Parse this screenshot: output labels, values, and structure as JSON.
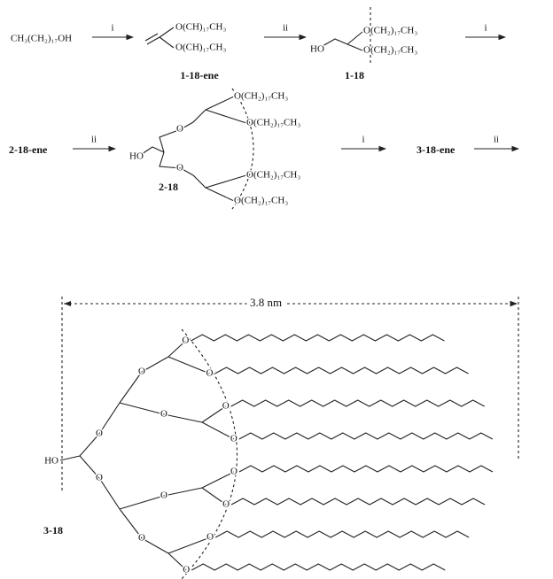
{
  "start": "CH₃(CH₂)₁₇OH",
  "reagents": [
    "i",
    "ii",
    "i",
    "ii",
    "i",
    "ii"
  ],
  "compounds": [
    {
      "label": "1-18-ene",
      "atoms": [
        "O(CH)₁₇CH₃",
        "O(CH)₁₇CH₃"
      ]
    },
    {
      "label": "1-18",
      "atoms": [
        "HO",
        "O(CH₂)₁₇CH₃",
        "O(CH₂)₁₇CH₃"
      ]
    },
    {
      "label": "2-18-ene"
    },
    {
      "label": "2-18",
      "atoms": [
        "HO",
        "O",
        "O",
        "O(CH₂)₁₇CH₃",
        "O(CH₂)₁₇CH₃",
        "O(CH₂)₁₇CH₃",
        "O(CH₂)₁₇CH₃"
      ]
    },
    {
      "label": "3-18-ene"
    },
    {
      "label": "3-18",
      "atoms": [
        "HO",
        "O",
        "O",
        "O",
        "O",
        "O",
        "O",
        "O",
        "O",
        "O",
        "O",
        "O",
        "O",
        "O",
        "O"
      ]
    }
  ],
  "dimension": "3.8 nm"
}
